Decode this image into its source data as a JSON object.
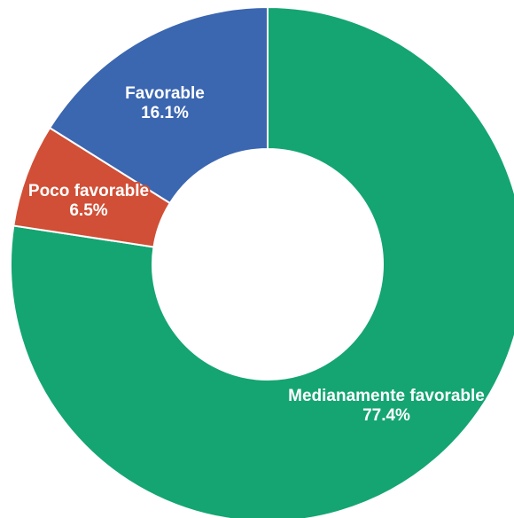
{
  "chart_data": {
    "type": "pie",
    "donut": true,
    "slices": [
      {
        "label": "Medianamente favorable",
        "value": 77.4,
        "value_label": "77.4%",
        "color": "#14a572"
      },
      {
        "label": "Poco favorable",
        "value": 6.5,
        "value_label": "6.5%",
        "color": "#d04f36"
      },
      {
        "label": "Favorable",
        "value": 16.1,
        "value_label": "16.1%",
        "color": "#3b66b0"
      }
    ],
    "start": "top",
    "direction": "clockwise",
    "legend": "none",
    "labels": "on-slice"
  }
}
